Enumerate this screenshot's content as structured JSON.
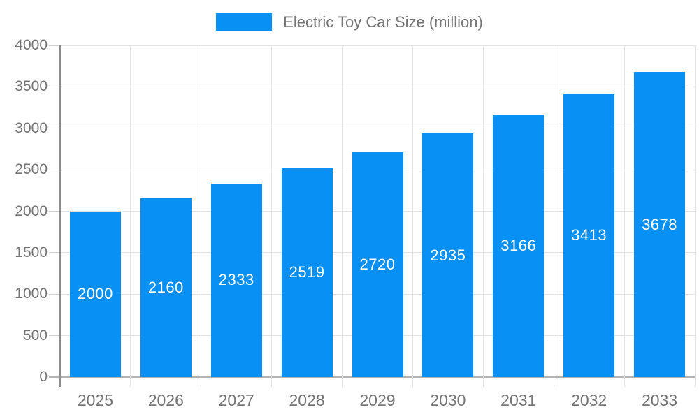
{
  "chart_data": {
    "type": "bar",
    "title": "Electric Toy Car Size (million)",
    "legend": "Electric Toy Car Size (million)",
    "legend_position": "top-center",
    "categories": [
      "2025",
      "2026",
      "2027",
      "2028",
      "2029",
      "2030",
      "2031",
      "2032",
      "2033"
    ],
    "values": [
      2000,
      2160,
      2333,
      2519,
      2720,
      2935,
      3166,
      3413,
      3678
    ],
    "bar_value_labels": [
      "2000",
      "2160",
      "2333",
      "2519",
      "2720",
      "2935",
      "3166",
      "3413",
      "3678"
    ],
    "xlabel": "",
    "ylabel": "",
    "ylim": [
      0,
      4000
    ],
    "yticks": [
      0,
      500,
      1000,
      1500,
      2000,
      2500,
      3000,
      3500,
      4000
    ],
    "ytick_labels": [
      "0",
      "500",
      "1000",
      "1500",
      "2000",
      "2500",
      "3000",
      "3500",
      "4000"
    ],
    "grid": true,
    "value_label_position": "center-of-bar",
    "colors": {
      "bar": "#0990f5",
      "bar_label_text": "#ffffff",
      "axis_text": "#757575",
      "legend_text": "#757575",
      "gridline": "#e2e2e2",
      "tick": "#d0d0d0",
      "y_axis_line": "#8a8a8a",
      "x_axis_line": "#b2b2b2",
      "background": "#ffffff"
    }
  }
}
